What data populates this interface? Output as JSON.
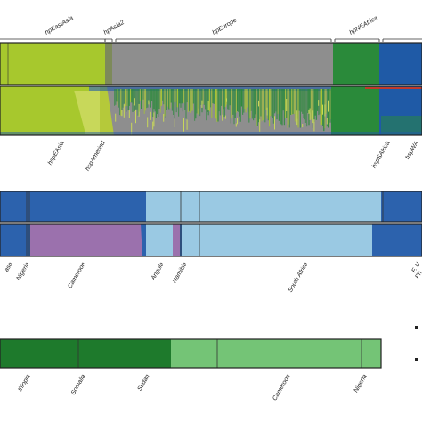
{
  "chart_data": [
    {
      "type": "structure-bar",
      "top_labels": [
        "hpEastAsia",
        "hpAsia2",
        "hpEurope",
        "hpNEAfrica"
      ],
      "bottom_labels": [
        "hspEAsia",
        "hspAmerind",
        "hspSAfrica",
        "hspWA"
      ],
      "grid": false
    },
    {
      "type": "structure-bar",
      "bottom_labels": [
        "aso",
        "Nigeria",
        "Cameroon",
        "Angola",
        "Namibia",
        "South Africa",
        "F. U",
        "Ph"
      ],
      "grid": false
    },
    {
      "type": "structure-bar",
      "bottom_labels": [
        "thiopia",
        "Somalia",
        "Sudan",
        "Cameroon",
        "Nigeria"
      ],
      "grid": false
    }
  ],
  "colors": {
    "hpEastAsia": "#a7c82d",
    "hpAsia2": "#9a9a9a",
    "hpEurope": "#8b8b8b",
    "hpNEAfrica": "#2a8a3a",
    "hpAfrica1": "#1f5aa6",
    "hspWAfrica": "#2c62ad",
    "hspSAfrica": "#9ac9e3",
    "purple": "#9b71ad",
    "darkgreen": "#1e7a2c",
    "lightgreen": "#74c476",
    "red": "#c0392b"
  }
}
